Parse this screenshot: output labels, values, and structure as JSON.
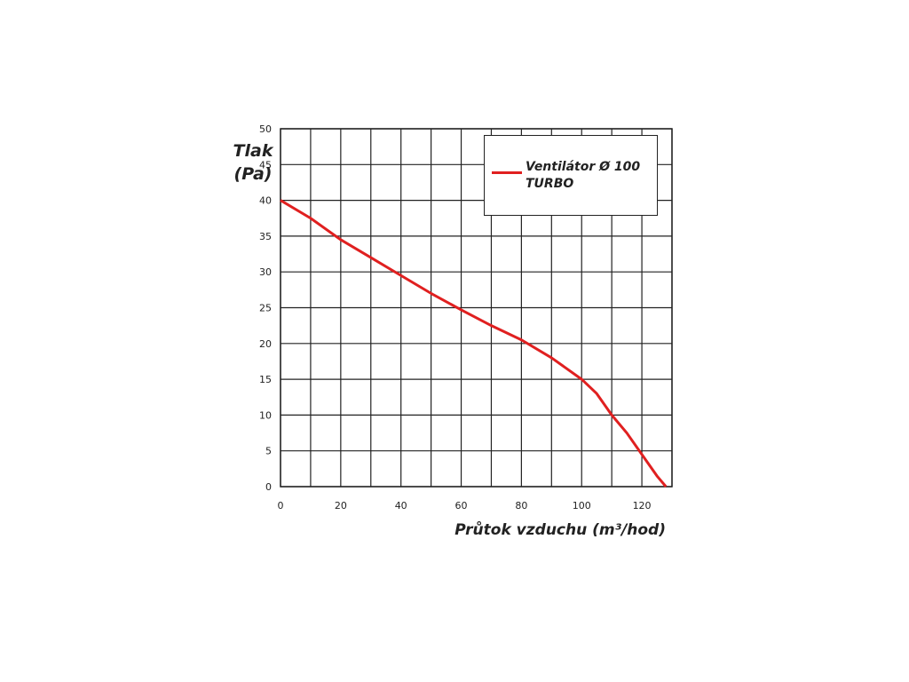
{
  "chart_data": {
    "type": "line",
    "y_label_lines": [
      "Tlak",
      "(Pa)"
    ],
    "x_label": "Průtok vzduchu (m³/hod)",
    "x": [
      0,
      10,
      20,
      30,
      40,
      50,
      60,
      70,
      80,
      90,
      100,
      105,
      110,
      115,
      120,
      125,
      128
    ],
    "series": [
      {
        "name": "Ventilátor Ø 100 TURBO",
        "color": "#e02020",
        "values": [
          40,
          37.5,
          34.5,
          32,
          29.5,
          27,
          24.7,
          22.5,
          20.5,
          18,
          15,
          13,
          10,
          7.5,
          4.5,
          1.5,
          0
        ]
      }
    ],
    "xlim": [
      0,
      130
    ],
    "xticks": [
      0,
      20,
      40,
      60,
      80,
      100,
      120
    ],
    "ylim": [
      0,
      50
    ],
    "yticks": [
      0,
      5,
      10,
      15,
      20,
      25,
      30,
      35,
      40,
      45,
      50
    ],
    "grid": true,
    "legend": "top-right"
  }
}
